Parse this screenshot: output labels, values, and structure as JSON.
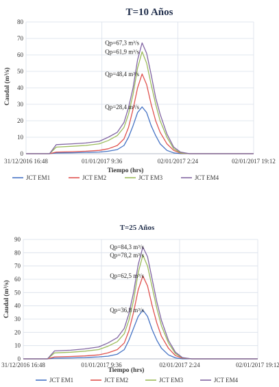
{
  "chart_data": [
    {
      "type": "line",
      "title": "T=10 Años",
      "xlabel": "Tiempo (hrs)",
      "ylabel": "Caudal (m³/s)",
      "x_tick_labels": [
        "31/12/2016 16:48",
        "01/01/2017 9:36",
        "02/01/2017 2:24",
        "02/01/2017 19:12"
      ],
      "xlim": [
        "2016-12-31T16:48",
        "2017-01-02T19:12"
      ],
      "ylim": [
        0,
        80
      ],
      "y_ticks": [
        0,
        10,
        20,
        30,
        40,
        50,
        60,
        70,
        80
      ],
      "grid": true,
      "legend_position": "bottom",
      "x": [
        "2016-12-31T16:48",
        "2016-12-31T22:00",
        "2016-12-31T23:30",
        "2017-01-01T03:00",
        "2017-01-01T06:00",
        "2017-01-01T09:00",
        "2017-01-01T11:00",
        "2017-01-01T13:00",
        "2017-01-01T14:30",
        "2017-01-01T15:30",
        "2017-01-01T16:30",
        "2017-01-01T17:30",
        "2017-01-01T18:30",
        "2017-01-01T19:30",
        "2017-01-01T20:30",
        "2017-01-01T21:30",
        "2017-01-01T22:30",
        "2017-01-02T00:00",
        "2017-01-02T01:30",
        "2017-01-02T03:00",
        "2017-01-02T05:00",
        "2017-01-02T07:00",
        "2017-01-02T19:12"
      ],
      "series": [
        {
          "name": "JCT EM1",
          "color": "#4472c4",
          "values": [
            0,
            0,
            0.5,
            0.6,
            0.8,
            1.0,
            1.5,
            2.5,
            5,
            10,
            17,
            25,
            28.4,
            25,
            17,
            11,
            6,
            2,
            0.5,
            0,
            0,
            0,
            0
          ]
        },
        {
          "name": "JCT EM2",
          "color": "#e0514d",
          "values": [
            0,
            0,
            1.0,
            1.2,
            1.5,
            2.0,
            3.0,
            5,
            9,
            16,
            27,
            40,
            48.4,
            42,
            30,
            20,
            13,
            6,
            2,
            0.3,
            0,
            0,
            0
          ]
        },
        {
          "name": "JCT EM3",
          "color": "#9bbb59",
          "values": [
            0,
            0,
            4.0,
            4.5,
            5.0,
            6.0,
            8.0,
            11,
            16,
            24,
            36,
            52,
            61.9,
            55,
            42,
            30,
            20,
            10,
            3,
            0.5,
            0,
            0,
            0
          ]
        },
        {
          "name": "JCT EM4",
          "color": "#8064a2",
          "values": [
            0,
            0,
            5.5,
            6.0,
            6.5,
            7.5,
            10,
            13,
            19,
            28,
            40,
            57,
            67.3,
            61,
            48,
            34,
            24,
            12,
            4,
            1,
            0,
            0,
            0
          ]
        }
      ],
      "annotations": [
        {
          "text": "Qp=67,3 m³/s",
          "x": "2017-01-01T18:30",
          "y": 67.3
        },
        {
          "text": "Qp=61,9 m³/s",
          "x": "2017-01-01T18:30",
          "y": 61.9
        },
        {
          "text": "Qp=48,4 m³/s",
          "x": "2017-01-01T18:30",
          "y": 48.4
        },
        {
          "text": "Qp=28,4 m³/s",
          "x": "2017-01-01T18:30",
          "y": 28.4
        }
      ]
    },
    {
      "type": "line",
      "title": "T=25 Años",
      "xlabel": "Tiempo (hrs)",
      "ylabel": "Caudal (m³/s)",
      "x_tick_labels": [
        "31/12/2016 16:48",
        "01/01/2017 9:36",
        "02/01/2017 2:24",
        "02/01/2017 19:12"
      ],
      "xlim": [
        "2016-12-31T16:48",
        "2017-01-02T19:12"
      ],
      "ylim": [
        0,
        90
      ],
      "y_ticks": [
        0,
        10,
        20,
        30,
        40,
        50,
        60,
        70,
        80,
        90
      ],
      "grid": true,
      "legend_position": "bottom",
      "x": [
        "2016-12-31T16:48",
        "2016-12-31T22:00",
        "2016-12-31T23:30",
        "2017-01-01T03:00",
        "2017-01-01T06:00",
        "2017-01-01T09:00",
        "2017-01-01T11:00",
        "2017-01-01T13:00",
        "2017-01-01T14:30",
        "2017-01-01T15:30",
        "2017-01-01T16:30",
        "2017-01-01T17:30",
        "2017-01-01T18:30",
        "2017-01-01T19:30",
        "2017-01-01T20:30",
        "2017-01-01T21:30",
        "2017-01-01T22:30",
        "2017-01-02T00:00",
        "2017-01-02T01:30",
        "2017-01-02T03:00",
        "2017-01-02T05:00",
        "2017-01-02T07:00",
        "2017-01-02T19:12"
      ],
      "series": [
        {
          "name": "JCT EM1",
          "color": "#4472c4",
          "values": [
            0,
            0,
            0.5,
            0.7,
            1.0,
            1.5,
            2.0,
            3.5,
            7,
            14,
            23,
            32,
            36.8,
            32,
            22,
            14,
            8,
            3,
            0.8,
            0,
            0,
            0,
            0
          ]
        },
        {
          "name": "JCT EM2",
          "color": "#e0514d",
          "values": [
            0,
            0,
            1.5,
            1.8,
            2.2,
            3.0,
            4.5,
            7,
            12,
            21,
            35,
            52,
            62.5,
            55,
            40,
            27,
            17,
            8,
            2.5,
            0.5,
            0,
            0,
            0
          ]
        },
        {
          "name": "JCT EM3",
          "color": "#9bbb59",
          "values": [
            0,
            0,
            4.5,
            5.0,
            5.8,
            7.0,
            9.5,
            13,
            19,
            29,
            44,
            65,
            78.2,
            70,
            54,
            38,
            25,
            12,
            4,
            0.8,
            0,
            0,
            0
          ]
        },
        {
          "name": "JCT EM4",
          "color": "#8064a2",
          "values": [
            0,
            0,
            6.0,
            6.5,
            7.5,
            9.0,
            12,
            16,
            23,
            34,
            50,
            71,
            84.3,
            77,
            60,
            43,
            29,
            14,
            5,
            1,
            0,
            0,
            0
          ]
        }
      ],
      "annotations": [
        {
          "text": "Qp=84,3 m³/s",
          "x": "2017-01-01T18:30",
          "y": 84.3
        },
        {
          "text": "Qp=78,2 m³/s",
          "x": "2017-01-01T18:30",
          "y": 78.2
        },
        {
          "text": "Qp=62,5 m³/s",
          "x": "2017-01-01T18:30",
          "y": 62.5
        },
        {
          "text": "Qp=36,8 m³/s",
          "x": "2017-01-01T18:30",
          "y": 36.8
        }
      ]
    }
  ]
}
